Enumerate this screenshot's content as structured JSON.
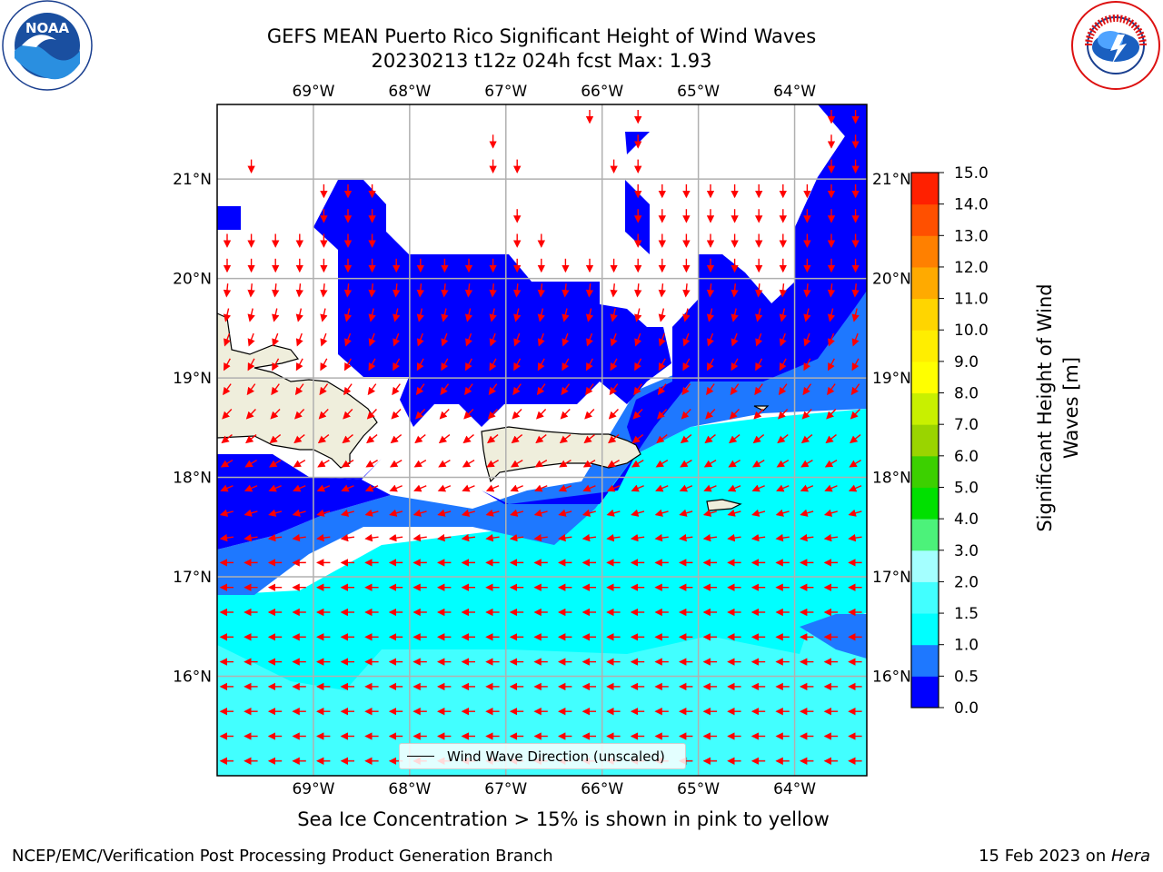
{
  "header": {
    "title_line1": "GEFS MEAN Puerto Rico Significant Height of Wind Waves",
    "title_line2": "20230213 t12z 024h fcst   Max: 1.93"
  },
  "map": {
    "lon_ticks": [
      "69°W",
      "68°W",
      "67°W",
      "66°W",
      "65°W",
      "64°W"
    ],
    "lon_values": [
      -69,
      -68,
      -67,
      -66,
      -65,
      -64
    ],
    "lat_ticks": [
      "16°N",
      "17°N",
      "18°N",
      "19°N",
      "20°N",
      "21°N"
    ],
    "lat_values": [
      16,
      17,
      18,
      19,
      20,
      21
    ],
    "extent": {
      "lon_min": -70.0,
      "lon_max": -63.25,
      "lat_min": 15.0,
      "lat_max": 21.75
    },
    "land_color": "#efeedc",
    "grid_color": "#b0b0b0",
    "arrow_color": "#ff0000"
  },
  "legend": {
    "label": "Wind Wave Direction (unscaled)"
  },
  "colorbar": {
    "label": "Significant Height of Wind Waves [m]",
    "levels": [
      0.0,
      0.5,
      1.0,
      1.5,
      2.0,
      3.0,
      4.0,
      5.0,
      6.0,
      7.0,
      8.0,
      9.0,
      10.0,
      11.0,
      12.0,
      13.0,
      14.0,
      15.0
    ],
    "tick_labels": [
      "0.0",
      "0.5",
      "1.0",
      "1.5",
      "2.0",
      "3.0",
      "4.0",
      "5.0",
      "6.0",
      "7.0",
      "8.0",
      "9.0",
      "10.0",
      "11.0",
      "12.0",
      "13.0",
      "14.0",
      "15.0"
    ],
    "colors": [
      "#0000ff",
      "#1e78ff",
      "#00ffff",
      "#42ffff",
      "#a4ffff",
      "#4cf27a",
      "#00e000",
      "#3cd000",
      "#9ad400",
      "#c8f000",
      "#ffff00",
      "#ffee00",
      "#ffd500",
      "#ffaa00",
      "#ff8000",
      "#ff5000",
      "#ff2000"
    ]
  },
  "footer": {
    "subtitle": "Sea Ice Concentration > 15% is shown in pink to yellow",
    "left": "NCEP/EMC/Verification Post Processing Product Generation Branch",
    "right_date": "15 Feb 2023 on ",
    "right_machine": "Hera"
  },
  "logos": {
    "left": "noaa-logo",
    "right": "nws-logo"
  }
}
